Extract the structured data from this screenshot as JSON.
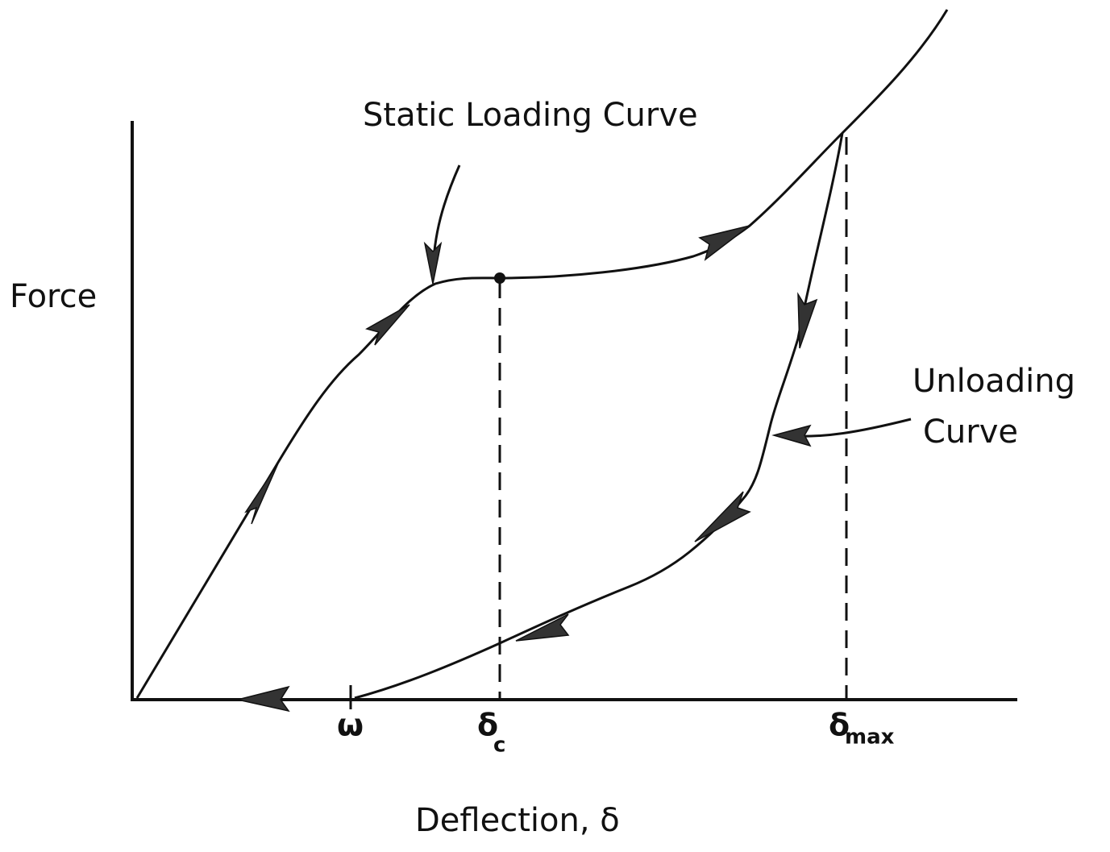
{
  "labels": {
    "static_loading": "Static Loading Curve",
    "unloading": [
      "Unloading",
      "Curve"
    ]
  },
  "axes": {
    "y_label": "Force",
    "x_label": "Deflection, δ"
  },
  "ticks": {
    "omega": "ω",
    "delta_c": {
      "symbol": "δ",
      "subscript": "c"
    },
    "delta_max": {
      "symbol": "δ",
      "subscript": "max"
    }
  }
}
